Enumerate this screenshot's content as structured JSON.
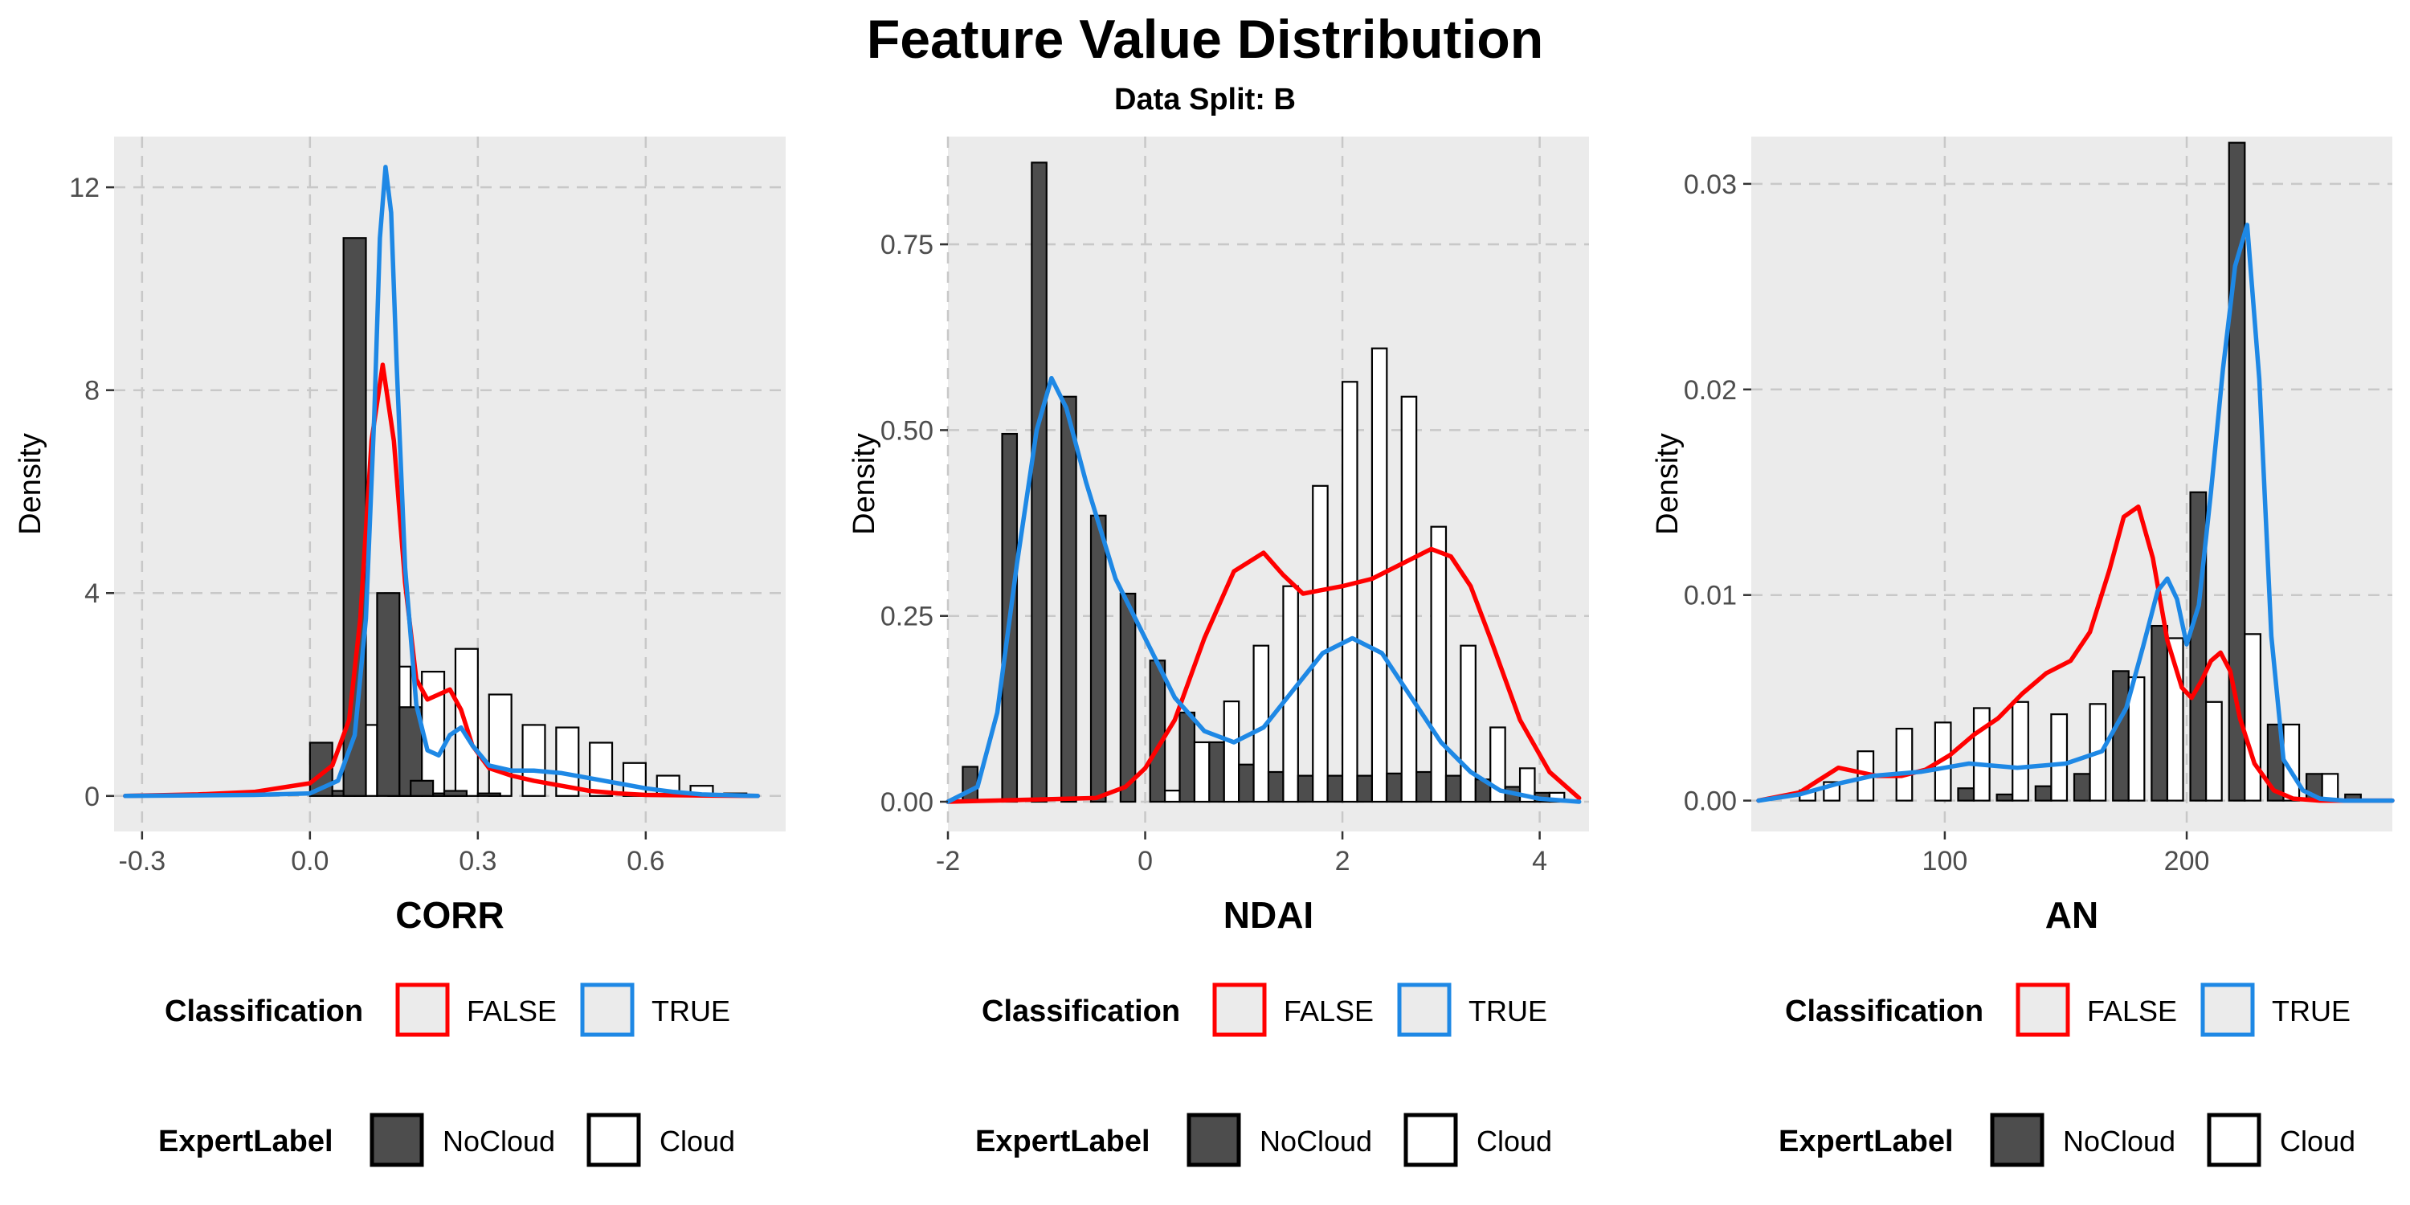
{
  "title": "Feature Value Distribution",
  "subtitle": "Data Split: B",
  "colors": {
    "false_line": "#ff0000",
    "true_line": "#1e88e5",
    "nocloud_fill": "#4d4d4d",
    "cloud_fill": "#ffffff",
    "panel_bg": "#ebebeb",
    "grid": "#c8c8c8"
  },
  "chart_data": [
    {
      "type": "bar",
      "xlabel": "CORR",
      "ylabel": "Density",
      "xlim": [
        -0.35,
        0.85
      ],
      "ylim": [
        -0.7,
        13.0
      ],
      "xticks": [
        -0.3,
        0.0,
        0.3,
        0.6
      ],
      "xtick_labels": [
        "-0.3",
        "0.0",
        "0.3",
        "0.6"
      ],
      "yticks": [
        0,
        4,
        8,
        12
      ],
      "ytick_labels": [
        "0",
        "4",
        "8",
        "12"
      ],
      "grid": true,
      "bin_width": 0.04,
      "bins": [
        {
          "x": 0.04,
          "nocloud": 1.05,
          "cloud": 0.0
        },
        {
          "x": 0.08,
          "nocloud": 0.1,
          "cloud": 1.4
        },
        {
          "x": 0.1,
          "nocloud": 11.0,
          "cloud": 0.0
        },
        {
          "x": 0.14,
          "nocloud": 0.0,
          "cloud": 2.55
        },
        {
          "x": 0.16,
          "nocloud": 4.0,
          "cloud": 0.0
        },
        {
          "x": 0.2,
          "nocloud": 1.75,
          "cloud": 2.45
        },
        {
          "x": 0.22,
          "nocloud": 0.3,
          "cloud": 0.0
        },
        {
          "x": 0.26,
          "nocloud": 0.05,
          "cloud": 2.9
        },
        {
          "x": 0.28,
          "nocloud": 0.1,
          "cloud": 0.0
        },
        {
          "x": 0.32,
          "nocloud": 0.0,
          "cloud": 2.0
        },
        {
          "x": 0.34,
          "nocloud": 0.05,
          "cloud": 0.0
        },
        {
          "x": 0.38,
          "nocloud": 0.0,
          "cloud": 1.4
        },
        {
          "x": 0.44,
          "nocloud": 0.0,
          "cloud": 1.35
        },
        {
          "x": 0.5,
          "nocloud": 0.0,
          "cloud": 1.05
        },
        {
          "x": 0.56,
          "nocloud": 0.0,
          "cloud": 0.65
        },
        {
          "x": 0.62,
          "nocloud": 0.0,
          "cloud": 0.4
        },
        {
          "x": 0.68,
          "nocloud": 0.0,
          "cloud": 0.2
        },
        {
          "x": 0.74,
          "nocloud": 0.0,
          "cloud": 0.05
        }
      ],
      "series": [
        {
          "name": "FALSE",
          "x": [
            -0.33,
            -0.2,
            -0.1,
            0.0,
            0.04,
            0.07,
            0.09,
            0.11,
            0.13,
            0.15,
            0.17,
            0.19,
            0.21,
            0.23,
            0.25,
            0.27,
            0.29,
            0.32,
            0.36,
            0.4,
            0.45,
            0.5,
            0.55,
            0.6,
            0.7,
            0.8
          ],
          "y": [
            0,
            0.03,
            0.08,
            0.25,
            0.6,
            1.5,
            3.5,
            7.0,
            8.5,
            7.0,
            4.2,
            2.3,
            1.9,
            2.0,
            2.1,
            1.7,
            1.0,
            0.55,
            0.4,
            0.3,
            0.2,
            0.1,
            0.05,
            0.02,
            0.01,
            0
          ]
        },
        {
          "name": "TRUE",
          "x": [
            -0.33,
            -0.1,
            0.0,
            0.05,
            0.08,
            0.1,
            0.115,
            0.125,
            0.135,
            0.145,
            0.155,
            0.17,
            0.19,
            0.21,
            0.23,
            0.25,
            0.27,
            0.29,
            0.32,
            0.36,
            0.4,
            0.45,
            0.5,
            0.55,
            0.6,
            0.65,
            0.7,
            0.8
          ],
          "y": [
            0,
            0.02,
            0.05,
            0.3,
            1.2,
            3.5,
            7.5,
            11.0,
            12.4,
            11.5,
            8.5,
            4.5,
            1.8,
            0.9,
            0.8,
            1.2,
            1.35,
            1.0,
            0.6,
            0.5,
            0.5,
            0.45,
            0.35,
            0.25,
            0.15,
            0.08,
            0.03,
            0
          ]
        }
      ],
      "legends": [
        {
          "title": "Classification",
          "items": [
            "FALSE",
            "TRUE"
          ]
        },
        {
          "title": "ExpertLabel",
          "items": [
            "NoCloud",
            "Cloud"
          ]
        }
      ]
    },
    {
      "type": "bar",
      "xlabel": "NDAI",
      "ylabel": "Density",
      "xlim": [
        -2.0,
        4.5
      ],
      "ylim": [
        -0.04,
        0.895
      ],
      "xticks": [
        -2,
        0,
        2,
        4
      ],
      "xtick_labels": [
        "-2",
        "0",
        "2",
        "4"
      ],
      "yticks": [
        0,
        0.25,
        0.5,
        0.75
      ],
      "ytick_labels": [
        "0.00",
        "0.25",
        "0.50",
        "0.75"
      ],
      "grid": true,
      "bin_width": 0.15,
      "bins": [
        {
          "x": -1.7,
          "nocloud": 0.047,
          "cloud": 0.0
        },
        {
          "x": -1.3,
          "nocloud": 0.495,
          "cloud": 0.0
        },
        {
          "x": -1.0,
          "nocloud": 0.86,
          "cloud": 0.0
        },
        {
          "x": -0.7,
          "nocloud": 0.545,
          "cloud": 0.0
        },
        {
          "x": -0.4,
          "nocloud": 0.385,
          "cloud": 0.0
        },
        {
          "x": -0.1,
          "nocloud": 0.28,
          "cloud": 0.0
        },
        {
          "x": 0.2,
          "nocloud": 0.19,
          "cloud": 0.015
        },
        {
          "x": 0.5,
          "nocloud": 0.12,
          "cloud": 0.08
        },
        {
          "x": 0.8,
          "nocloud": 0.08,
          "cloud": 0.135
        },
        {
          "x": 1.1,
          "nocloud": 0.05,
          "cloud": 0.21
        },
        {
          "x": 1.4,
          "nocloud": 0.04,
          "cloud": 0.29
        },
        {
          "x": 1.7,
          "nocloud": 0.035,
          "cloud": 0.425
        },
        {
          "x": 2.0,
          "nocloud": 0.035,
          "cloud": 0.565
        },
        {
          "x": 2.3,
          "nocloud": 0.035,
          "cloud": 0.61
        },
        {
          "x": 2.6,
          "nocloud": 0.038,
          "cloud": 0.545
        },
        {
          "x": 2.9,
          "nocloud": 0.04,
          "cloud": 0.37
        },
        {
          "x": 3.2,
          "nocloud": 0.035,
          "cloud": 0.21
        },
        {
          "x": 3.5,
          "nocloud": 0.03,
          "cloud": 0.1
        },
        {
          "x": 3.8,
          "nocloud": 0.02,
          "cloud": 0.045
        },
        {
          "x": 4.1,
          "nocloud": 0.012,
          "cloud": 0.012
        }
      ],
      "series": [
        {
          "name": "FALSE",
          "x": [
            -2.0,
            -0.5,
            -0.2,
            0.0,
            0.3,
            0.6,
            0.9,
            1.2,
            1.4,
            1.6,
            1.8,
            2.0,
            2.3,
            2.6,
            2.9,
            3.1,
            3.3,
            3.5,
            3.8,
            4.1,
            4.4
          ],
          "y": [
            0,
            0.005,
            0.02,
            0.045,
            0.11,
            0.22,
            0.31,
            0.335,
            0.305,
            0.28,
            0.285,
            0.29,
            0.3,
            0.32,
            0.34,
            0.33,
            0.29,
            0.22,
            0.11,
            0.04,
            0.005
          ]
        },
        {
          "name": "TRUE",
          "x": [
            -2.0,
            -1.7,
            -1.5,
            -1.3,
            -1.1,
            -0.95,
            -0.8,
            -0.6,
            -0.3,
            0.0,
            0.3,
            0.6,
            0.9,
            1.2,
            1.5,
            1.8,
            2.1,
            2.4,
            2.7,
            3.0,
            3.3,
            3.6,
            4.0,
            4.4
          ],
          "y": [
            0,
            0.02,
            0.12,
            0.32,
            0.5,
            0.57,
            0.53,
            0.43,
            0.3,
            0.22,
            0.14,
            0.095,
            0.08,
            0.1,
            0.15,
            0.2,
            0.22,
            0.2,
            0.14,
            0.08,
            0.04,
            0.015,
            0.004,
            0
          ]
        }
      ],
      "legends": [
        {
          "title": "Classification",
          "items": [
            "FALSE",
            "TRUE"
          ]
        },
        {
          "title": "ExpertLabel",
          "items": [
            "NoCloud",
            "Cloud"
          ]
        }
      ]
    },
    {
      "type": "bar",
      "xlabel": "AN",
      "ylabel": "Density",
      "xlim": [
        20,
        285
      ],
      "ylim": [
        -0.0015,
        0.0323
      ],
      "xticks": [
        100,
        200
      ],
      "xtick_labels": [
        "100",
        "200"
      ],
      "yticks": [
        0,
        0.01,
        0.02,
        0.03
      ],
      "ytick_labels": [
        "0.00",
        "0.01",
        "0.02",
        "0.03"
      ],
      "grid": true,
      "bin_width": 6.5,
      "bins": [
        {
          "x": 40,
          "nocloud": 0.0,
          "cloud": 0.0005
        },
        {
          "x": 50,
          "nocloud": 0.0,
          "cloud": 0.0009
        },
        {
          "x": 64,
          "nocloud": 0.0,
          "cloud": 0.0024
        },
        {
          "x": 80,
          "nocloud": 0.0,
          "cloud": 0.0035
        },
        {
          "x": 96,
          "nocloud": 0.0,
          "cloud": 0.0038
        },
        {
          "x": 112,
          "nocloud": 0.0006,
          "cloud": 0.0045
        },
        {
          "x": 128,
          "nocloud": 0.0003,
          "cloud": 0.0048
        },
        {
          "x": 144,
          "nocloud": 0.0007,
          "cloud": 0.0042
        },
        {
          "x": 160,
          "nocloud": 0.0013,
          "cloud": 0.0047
        },
        {
          "x": 176,
          "nocloud": 0.0063,
          "cloud": 0.006
        },
        {
          "x": 192,
          "nocloud": 0.0085,
          "cloud": 0.0079
        },
        {
          "x": 208,
          "nocloud": 0.015,
          "cloud": 0.0048
        },
        {
          "x": 224,
          "nocloud": 0.032,
          "cloud": 0.0081
        },
        {
          "x": 240,
          "nocloud": 0.0037,
          "cloud": 0.0037
        },
        {
          "x": 256,
          "nocloud": 0.0013,
          "cloud": 0.0013
        },
        {
          "x": 272,
          "nocloud": 0.0003,
          "cloud": 0.0
        }
      ],
      "series": [
        {
          "name": "FALSE",
          "x": [
            23,
            40,
            48,
            56,
            64,
            72,
            82,
            92,
            102,
            112,
            122,
            132,
            142,
            152,
            160,
            168,
            174,
            180,
            186,
            192,
            198,
            202,
            206,
            210,
            214,
            218,
            222,
            228,
            236,
            244,
            255,
            265,
            275,
            285
          ],
          "y": [
            0,
            0.0004,
            0.001,
            0.0016,
            0.0014,
            0.0012,
            0.0012,
            0.0015,
            0.0022,
            0.0032,
            0.004,
            0.0052,
            0.0062,
            0.0068,
            0.0082,
            0.0112,
            0.0138,
            0.0143,
            0.0118,
            0.0078,
            0.0055,
            0.005,
            0.0058,
            0.0068,
            0.0072,
            0.0063,
            0.004,
            0.0018,
            0.0005,
            0.0001,
            0,
            0,
            0,
            0
          ]
        },
        {
          "name": "TRUE",
          "x": [
            23,
            40,
            55,
            70,
            90,
            110,
            130,
            150,
            165,
            175,
            182,
            188,
            192,
            196,
            200,
            205,
            210,
            215,
            220,
            225,
            230,
            235,
            240,
            248,
            255,
            265,
            275,
            285
          ],
          "y": [
            0,
            0.0003,
            0.0008,
            0.0012,
            0.0014,
            0.0018,
            0.0016,
            0.0018,
            0.0024,
            0.0045,
            0.0075,
            0.0102,
            0.0108,
            0.0098,
            0.0076,
            0.0095,
            0.015,
            0.021,
            0.026,
            0.028,
            0.0205,
            0.008,
            0.002,
            0.0005,
            0.0001,
            0,
            0,
            0
          ]
        }
      ],
      "legends": [
        {
          "title": "Classification",
          "items": [
            "FALSE",
            "TRUE"
          ]
        },
        {
          "title": "ExpertLabel",
          "items": [
            "NoCloud",
            "Cloud"
          ]
        }
      ]
    }
  ]
}
